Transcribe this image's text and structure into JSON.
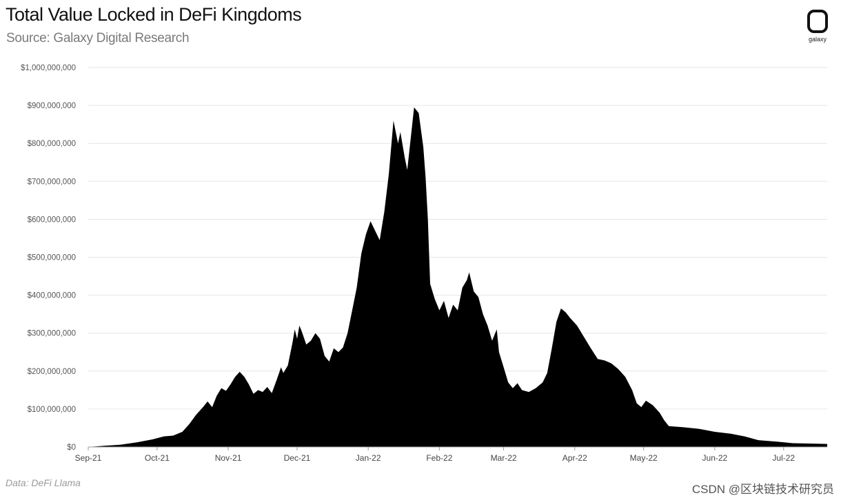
{
  "header": {
    "title": "Total Value Locked in DeFi Kingdoms",
    "subtitle": "Source: Galaxy Digital Research",
    "logo_text": "galaxy"
  },
  "footer": {
    "data_credit": "Data: DeFi Llama",
    "watermark": "CSDN @区块链技术研究员"
  },
  "colors": {
    "area": "#000000",
    "grid": "#e6e6e6",
    "axis": "#999999"
  },
  "chart_data": {
    "type": "area",
    "title": "Total Value Locked in DeFi Kingdoms",
    "subtitle": "Source: Galaxy Digital Research",
    "xlabel": "",
    "ylabel": "",
    "ylim": [
      0,
      1000000000
    ],
    "xlim": [
      "2021-09-01",
      "2022-07-20"
    ],
    "grid": true,
    "y_ticks": [
      0,
      100000000,
      200000000,
      300000000,
      400000000,
      500000000,
      600000000,
      700000000,
      800000000,
      900000000,
      1000000000
    ],
    "y_tick_labels": [
      "$0",
      "$100,000,000",
      "$200,000,000",
      "$300,000,000",
      "$400,000,000",
      "$500,000,000",
      "$600,000,000",
      "$700,000,000",
      "$800,000,000",
      "$900,000,000",
      "$1,000,000,000"
    ],
    "x_ticks": [
      {
        "date": "2021-09-01",
        "label": "Sep-21"
      },
      {
        "date": "2021-10-01",
        "label": "Oct-21"
      },
      {
        "date": "2021-11-01",
        "label": "Nov-21"
      },
      {
        "date": "2021-12-01",
        "label": "Dec-21"
      },
      {
        "date": "2022-01-01",
        "label": "Jan-22"
      },
      {
        "date": "2022-02-01",
        "label": "Feb-22"
      },
      {
        "date": "2022-03-01",
        "label": "Mar-22"
      },
      {
        "date": "2022-04-01",
        "label": "Apr-22"
      },
      {
        "date": "2022-05-01",
        "label": "May-22"
      },
      {
        "date": "2022-06-01",
        "label": "Jun-22"
      },
      {
        "date": "2022-07-01",
        "label": "Jul-22"
      }
    ],
    "series": [
      {
        "points": [
          [
            "2021-09-01",
            0
          ],
          [
            "2021-09-08",
            3000000
          ],
          [
            "2021-09-15",
            6000000
          ],
          [
            "2021-09-22",
            12000000
          ],
          [
            "2021-09-29",
            20000000
          ],
          [
            "2021-10-04",
            28000000
          ],
          [
            "2021-10-08",
            30000000
          ],
          [
            "2021-10-12",
            40000000
          ],
          [
            "2021-10-15",
            60000000
          ],
          [
            "2021-10-18",
            85000000
          ],
          [
            "2021-10-21",
            105000000
          ],
          [
            "2021-10-23",
            120000000
          ],
          [
            "2021-10-25",
            105000000
          ],
          [
            "2021-10-27",
            135000000
          ],
          [
            "2021-10-29",
            155000000
          ],
          [
            "2021-10-31",
            148000000
          ],
          [
            "2021-11-02",
            165000000
          ],
          [
            "2021-11-04",
            185000000
          ],
          [
            "2021-11-06",
            198000000
          ],
          [
            "2021-11-08",
            185000000
          ],
          [
            "2021-11-10",
            165000000
          ],
          [
            "2021-11-12",
            140000000
          ],
          [
            "2021-11-14",
            150000000
          ],
          [
            "2021-11-16",
            145000000
          ],
          [
            "2021-11-18",
            158000000
          ],
          [
            "2021-11-20",
            142000000
          ],
          [
            "2021-11-22",
            175000000
          ],
          [
            "2021-11-24",
            210000000
          ],
          [
            "2021-11-25",
            195000000
          ],
          [
            "2021-11-27",
            215000000
          ],
          [
            "2021-11-29",
            275000000
          ],
          [
            "2021-11-30",
            310000000
          ],
          [
            "2021-12-01",
            285000000
          ],
          [
            "2021-12-02",
            320000000
          ],
          [
            "2021-12-03",
            305000000
          ],
          [
            "2021-12-05",
            270000000
          ],
          [
            "2021-12-07",
            280000000
          ],
          [
            "2021-12-09",
            300000000
          ],
          [
            "2021-12-11",
            285000000
          ],
          [
            "2021-12-13",
            240000000
          ],
          [
            "2021-12-15",
            225000000
          ],
          [
            "2021-12-17",
            260000000
          ],
          [
            "2021-12-19",
            250000000
          ],
          [
            "2021-12-21",
            262000000
          ],
          [
            "2021-12-23",
            300000000
          ],
          [
            "2021-12-25",
            360000000
          ],
          [
            "2021-12-27",
            420000000
          ],
          [
            "2021-12-29",
            510000000
          ],
          [
            "2021-12-31",
            560000000
          ],
          [
            "2022-01-02",
            595000000
          ],
          [
            "2022-01-04",
            570000000
          ],
          [
            "2022-01-06",
            545000000
          ],
          [
            "2022-01-08",
            620000000
          ],
          [
            "2022-01-10",
            720000000
          ],
          [
            "2022-01-12",
            860000000
          ],
          [
            "2022-01-14",
            800000000
          ],
          [
            "2022-01-15",
            830000000
          ],
          [
            "2022-01-17",
            760000000
          ],
          [
            "2022-01-18",
            730000000
          ],
          [
            "2022-01-20",
            840000000
          ],
          [
            "2022-01-21",
            895000000
          ],
          [
            "2022-01-23",
            880000000
          ],
          [
            "2022-01-25",
            790000000
          ],
          [
            "2022-01-26",
            710000000
          ],
          [
            "2022-01-27",
            600000000
          ],
          [
            "2022-01-28",
            430000000
          ],
          [
            "2022-01-30",
            390000000
          ],
          [
            "2022-02-01",
            360000000
          ],
          [
            "2022-02-03",
            385000000
          ],
          [
            "2022-02-05",
            340000000
          ],
          [
            "2022-02-07",
            375000000
          ],
          [
            "2022-02-09",
            360000000
          ],
          [
            "2022-02-11",
            420000000
          ],
          [
            "2022-02-13",
            440000000
          ],
          [
            "2022-02-14",
            460000000
          ],
          [
            "2022-02-16",
            410000000
          ],
          [
            "2022-02-18",
            395000000
          ],
          [
            "2022-02-20",
            350000000
          ],
          [
            "2022-02-22",
            320000000
          ],
          [
            "2022-02-24",
            280000000
          ],
          [
            "2022-02-26",
            310000000
          ],
          [
            "2022-02-27",
            250000000
          ],
          [
            "2022-03-01",
            210000000
          ],
          [
            "2022-03-03",
            170000000
          ],
          [
            "2022-03-05",
            155000000
          ],
          [
            "2022-03-07",
            168000000
          ],
          [
            "2022-03-09",
            150000000
          ],
          [
            "2022-03-12",
            145000000
          ],
          [
            "2022-03-15",
            155000000
          ],
          [
            "2022-03-18",
            170000000
          ],
          [
            "2022-03-20",
            195000000
          ],
          [
            "2022-03-22",
            260000000
          ],
          [
            "2022-03-24",
            330000000
          ],
          [
            "2022-03-26",
            365000000
          ],
          [
            "2022-03-28",
            355000000
          ],
          [
            "2022-03-30",
            340000000
          ],
          [
            "2022-04-02",
            320000000
          ],
          [
            "2022-04-05",
            290000000
          ],
          [
            "2022-04-08",
            260000000
          ],
          [
            "2022-04-11",
            232000000
          ],
          [
            "2022-04-14",
            228000000
          ],
          [
            "2022-04-17",
            220000000
          ],
          [
            "2022-04-20",
            205000000
          ],
          [
            "2022-04-23",
            185000000
          ],
          [
            "2022-04-26",
            150000000
          ],
          [
            "2022-04-28",
            115000000
          ],
          [
            "2022-04-30",
            105000000
          ],
          [
            "2022-05-02",
            122000000
          ],
          [
            "2022-05-05",
            110000000
          ],
          [
            "2022-05-08",
            90000000
          ],
          [
            "2022-05-10",
            70000000
          ],
          [
            "2022-05-12",
            55000000
          ],
          [
            "2022-05-18",
            52000000
          ],
          [
            "2022-05-25",
            48000000
          ],
          [
            "2022-06-01",
            40000000
          ],
          [
            "2022-06-08",
            35000000
          ],
          [
            "2022-06-14",
            28000000
          ],
          [
            "2022-06-20",
            18000000
          ],
          [
            "2022-06-28",
            14000000
          ],
          [
            "2022-07-05",
            10000000
          ],
          [
            "2022-07-12",
            9000000
          ],
          [
            "2022-07-20",
            8000000
          ]
        ]
      }
    ]
  }
}
